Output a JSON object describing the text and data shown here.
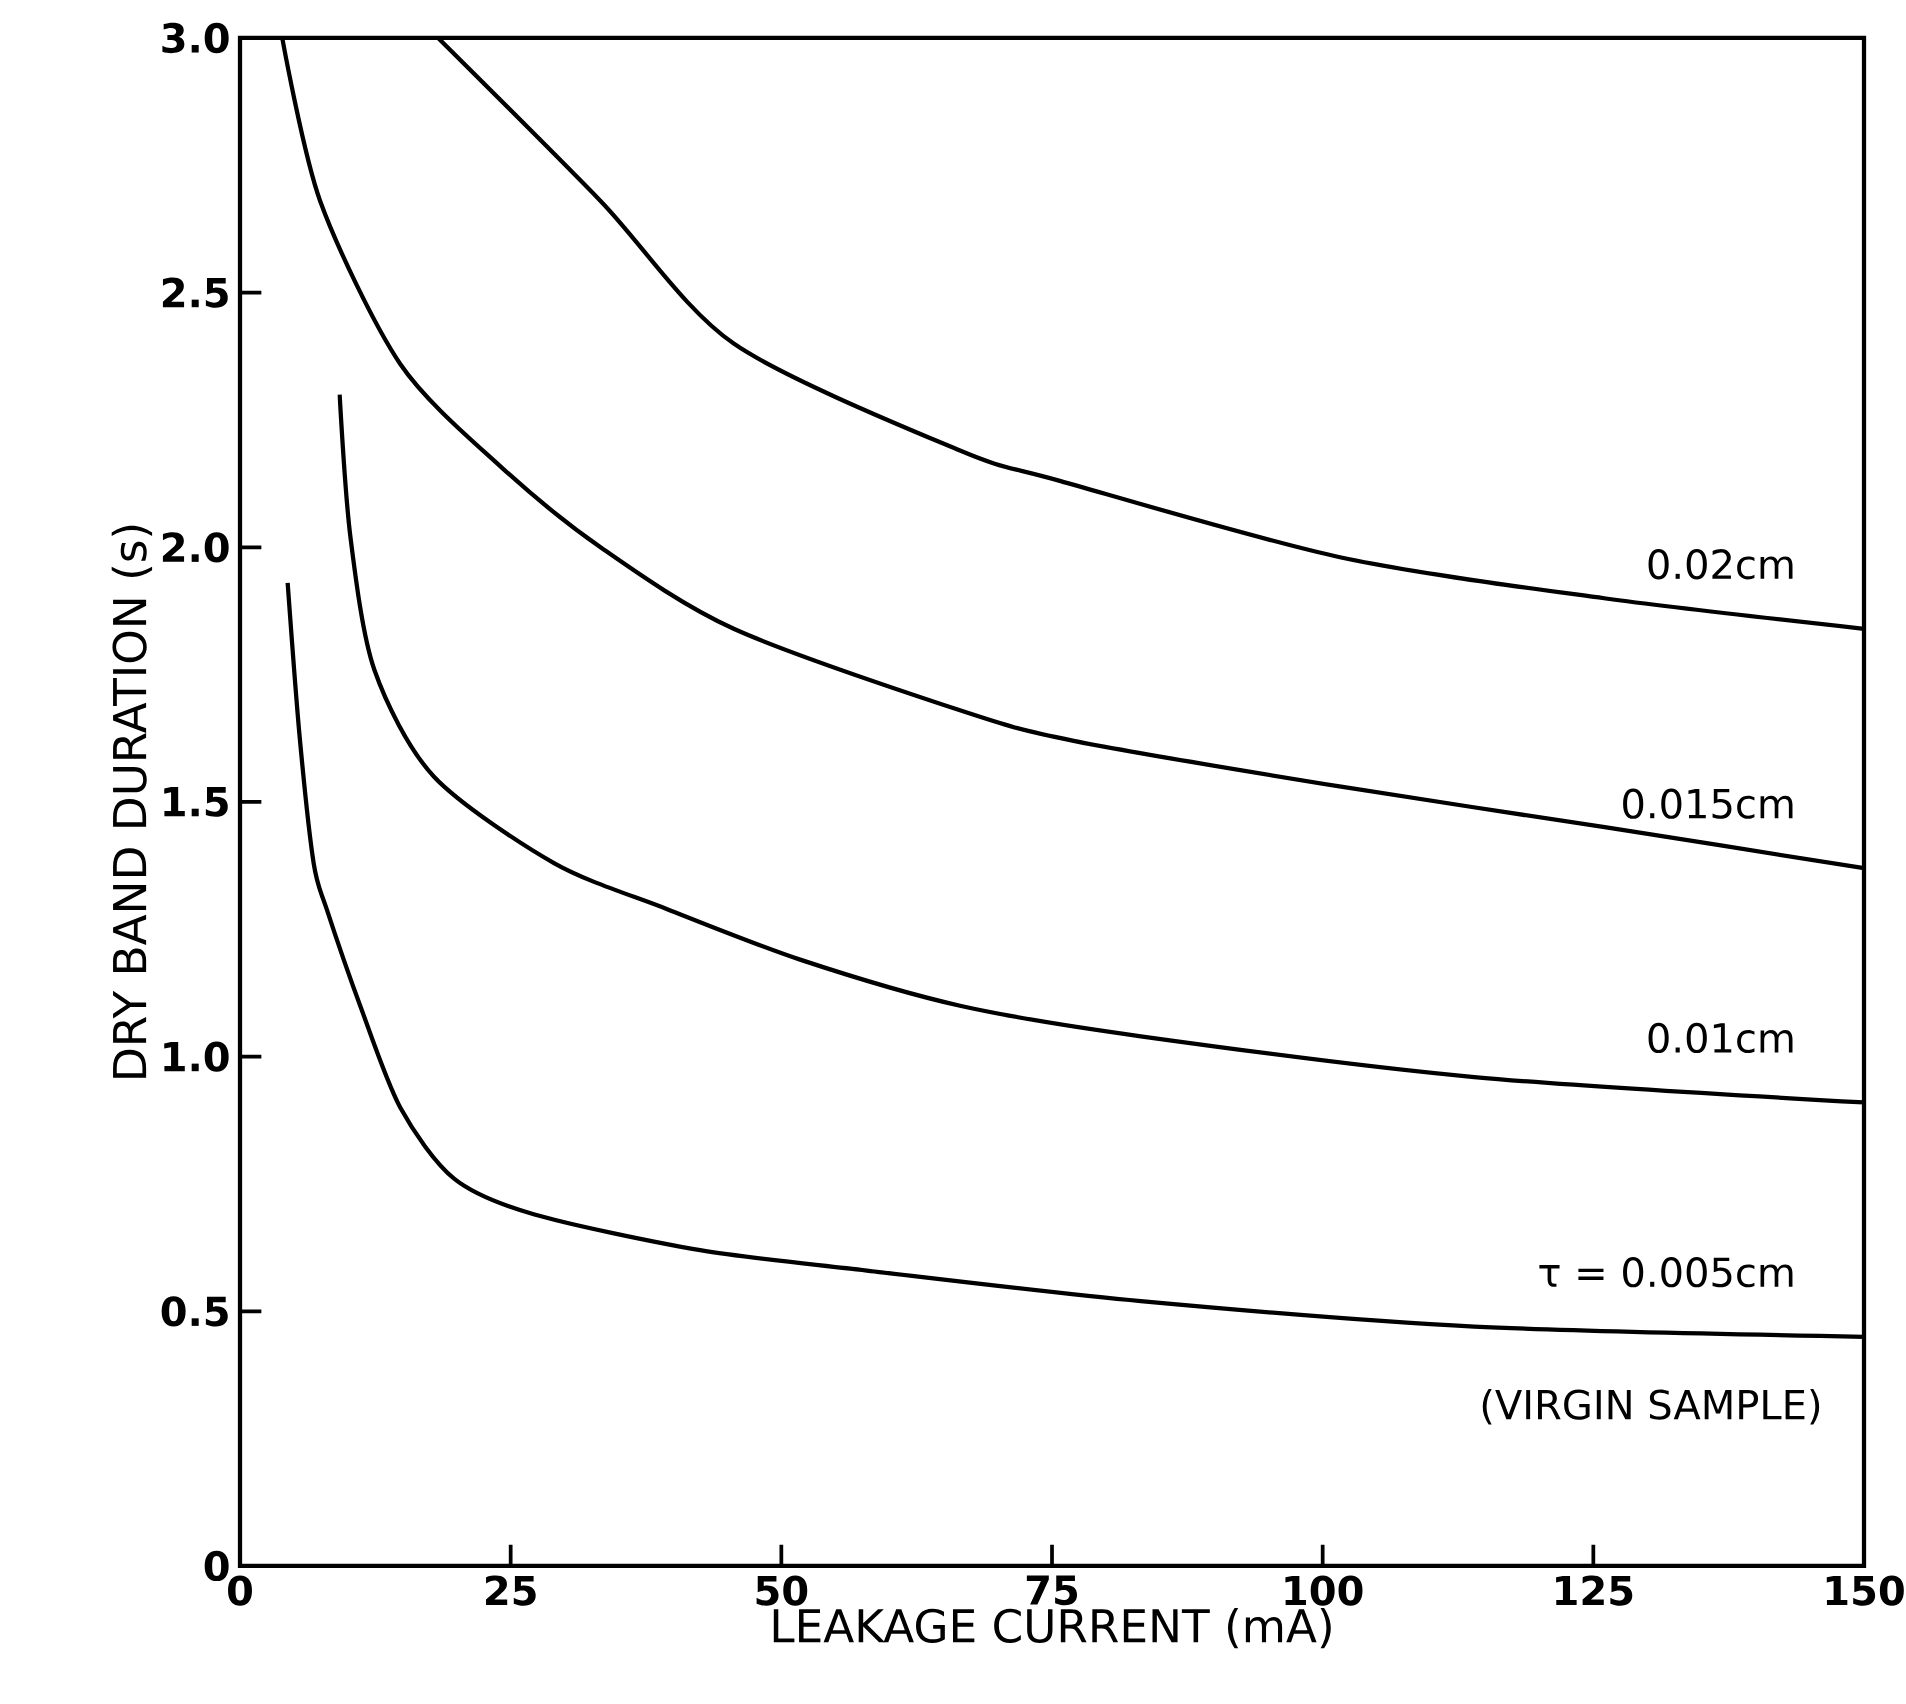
{
  "chart_data": {
    "type": "line",
    "xlabel": "LEAKAGE CURRENT (mA)",
    "ylabel": "DRY BAND DURATION (s)",
    "xlim": [
      0,
      150
    ],
    "ylim": [
      0,
      3.0
    ],
    "xticks": [
      0,
      25,
      50,
      75,
      100,
      125,
      150
    ],
    "yticks": [
      0,
      0.5,
      {
        "value": 1,
        "label": "1.0"
      },
      1.5,
      {
        "value": 2,
        "label": "2.0"
      },
      2.5,
      {
        "value": 3,
        "label": "3.0"
      }
    ],
    "marker": "none",
    "line_style": "solid",
    "grid": false,
    "legend": false,
    "series": [
      {
        "name": "τ = 0.005cm",
        "color": "#000000",
        "x": [
          4.4,
          5.5,
          6.8,
          8.0,
          11.1,
          14.8,
          19.8,
          27.2,
          42.5,
          57.9,
          83.2,
          114,
          150
        ],
        "values": [
          1.93,
          1.63,
          1.38,
          1.29,
          1.1,
          0.9,
          0.76,
          0.69,
          0.62,
          0.58,
          0.52,
          0.47,
          0.45
        ]
      },
      {
        "name": "0.01cm",
        "color": "#000000",
        "x": [
          9.2,
          10.2,
          12.4,
          17.9,
          29,
          39.4,
          51.8,
          66.5,
          83.2,
          114,
          150
        ],
        "values": [
          2.3,
          2.02,
          1.76,
          1.55,
          1.38,
          1.29,
          1.19,
          1.1,
          1.04,
          0.96,
          0.91
        ]
      },
      {
        "name": "0.015cm",
        "color": "#000000",
        "x": [
          3.9,
          7.4,
          14.8,
          24,
          33.3,
          45.6,
          66.5,
          77,
          101.7,
          126.2,
          150
        ],
        "values": [
          3.0,
          2.68,
          2.36,
          2.16,
          2.0,
          1.84,
          1.68,
          1.62,
          1.53,
          1.45,
          1.37
        ]
      },
      {
        "name": "0.02cm",
        "color": "#000000",
        "x": [
          18.3,
          33.3,
          45.6,
          66.5,
          75.8,
          101.7,
          126,
          150
        ],
        "values": [
          3.0,
          2.68,
          2.4,
          2.19,
          2.13,
          1.98,
          1.9,
          1.84
        ]
      }
    ],
    "annotations": [
      "(VIRGIN SAMPLE)"
    ]
  }
}
